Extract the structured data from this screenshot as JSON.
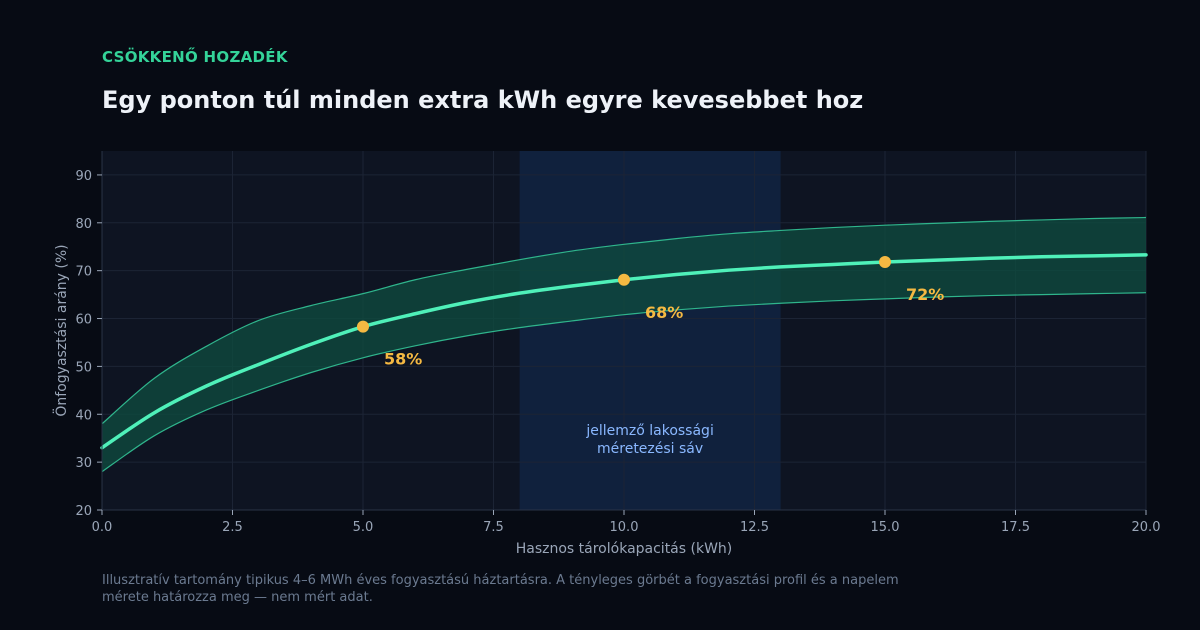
{
  "header": {
    "eyebrow": "CSÖKKENŐ HOZADÉK",
    "title": "Egy ponton túl minden extra kWh egyre kevesebbet hoz"
  },
  "footnote": "Illusztratív tartomány tipikus 4–6 MWh éves fogyasztású háztartásra. A tényleges görbét a fogyasztási profil és a napelem mérete határozza meg — nem mért adat.",
  "colors": {
    "accent": "#34d399",
    "curve": "#4ff0b9",
    "band_fill": "#0e4a3f",
    "band_edge": "#2fb58c",
    "highlight": "#f5b942",
    "zone": "#10213d",
    "plot_bg": "#0e1422"
  },
  "chart_data": {
    "type": "line",
    "title": "Egy ponton túl minden extra kWh egyre kevesebbet hoz",
    "xlabel": "Hasznos tárolókapacitás (kWh)",
    "ylabel": "Önfogyasztási arány (%)",
    "xlim": [
      0,
      20
    ],
    "ylim": [
      20,
      95
    ],
    "x_ticks": [
      "0.0",
      "2.5",
      "5.0",
      "7.5",
      "10.0",
      "12.5",
      "15.0",
      "17.5",
      "20.0"
    ],
    "y_ticks": [
      "20",
      "30",
      "40",
      "50",
      "60",
      "70",
      "80",
      "90"
    ],
    "grid": true,
    "series": [
      {
        "x": [
          0,
          1,
          2,
          3,
          4,
          5,
          6,
          7,
          8,
          9,
          10,
          11,
          12,
          13,
          14,
          15,
          16,
          17,
          18,
          19,
          20
        ],
        "values": [
          33,
          40.3,
          45.9,
          50.4,
          54.6,
          58.3,
          61.0,
          63.4,
          65.3,
          66.8,
          68.1,
          69.2,
          70.1,
          70.8,
          71.3,
          71.8,
          72.2,
          72.6,
          72.9,
          73.1,
          73.3
        ],
        "upper": [
          38,
          47.5,
          54.2,
          59.6,
          62.7,
          65.2,
          68.1,
          70.3,
          72.3,
          74.1,
          75.5,
          76.7,
          77.7,
          78.4,
          79.0,
          79.5,
          79.9,
          80.3,
          80.6,
          80.9,
          81.1
        ],
        "lower": [
          28,
          35.5,
          40.9,
          45.0,
          48.7,
          51.8,
          54.3,
          56.4,
          58.1,
          59.5,
          60.8,
          61.8,
          62.6,
          63.2,
          63.7,
          64.1,
          64.5,
          64.8,
          65.0,
          65.2,
          65.4
        ]
      }
    ],
    "highlights": [
      {
        "x": 5,
        "y": 58.3,
        "label": "58%"
      },
      {
        "x": 10,
        "y": 68.1,
        "label": "68%"
      },
      {
        "x": 15,
        "y": 71.8,
        "label": "72%"
      }
    ],
    "typical_band": {
      "x_range": [
        8,
        13
      ],
      "label_lines": [
        "jellemző lakossági",
        "méretezési sáv"
      ]
    }
  }
}
